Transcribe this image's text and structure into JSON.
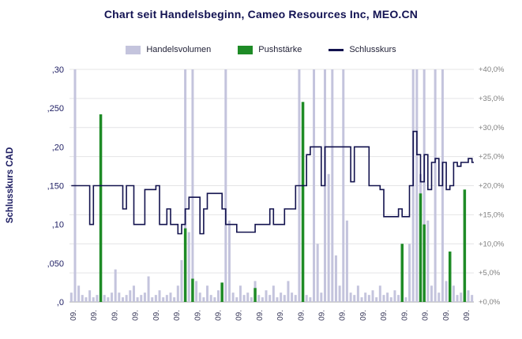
{
  "chart_data": {
    "type": "composite",
    "title": "Chart seit Handelsbeginn, Cameo Resources Inc, MEO.CN",
    "ylabel_left": "Schlusskurs CAD",
    "left_axis": {
      "range": [
        0,
        0.3
      ],
      "ticks": [
        {
          "label": ",30",
          "value": 0.3
        },
        {
          "label": ",250",
          "value": 0.25
        },
        {
          "label": ",20",
          "value": 0.2
        },
        {
          "label": ",150",
          "value": 0.15
        },
        {
          "label": ",10",
          "value": 0.1
        },
        {
          "label": ",050",
          "value": 0.05
        },
        {
          "label": ",0",
          "value": 0.0
        }
      ]
    },
    "right_axis": {
      "range": [
        0,
        40
      ],
      "step": 5,
      "ticks": [
        "+40,0%",
        "+35,0%",
        "+30,0%",
        "+25,0%",
        "+20,0%",
        "+15,0%",
        "+10,0%",
        "+5,0%",
        "+0,0%"
      ]
    },
    "x_tick_labels": [
      "09.",
      "09.",
      "09.",
      "09.",
      "09.",
      "09.",
      "09.",
      "09.",
      "09.",
      "09.",
      "09.",
      "09.",
      "09.",
      "09.",
      "09.",
      "09.",
      "09.",
      "09.",
      "09.",
      "09."
    ],
    "grid": true,
    "legend_position": "top",
    "colors": {
      "title": "#121252",
      "volume": "#c4c4dd",
      "push": "#1e8b26",
      "close": "#12124e",
      "left_axis_text": "#1c1c62",
      "right_axis_text": "#7f7f7f",
      "x_axis_text": "#3c3c5c",
      "grid": "#e4e4e6",
      "baseline": "#a6a6a6"
    },
    "series": [
      {
        "name": "Handelsvolumen",
        "type": "bar",
        "unit": "percent_of_plot_height",
        "color": "#c4c4dd",
        "values": [
          4,
          100,
          7,
          3,
          2,
          5,
          2,
          3,
          9,
          3,
          2,
          4,
          14,
          4,
          2,
          3,
          5,
          7,
          2,
          3,
          4,
          11,
          2,
          3,
          5,
          2,
          3,
          4,
          2,
          7,
          18,
          100,
          30,
          100,
          9,
          4,
          2,
          7,
          3,
          2,
          5,
          3,
          100,
          35,
          4,
          2,
          7,
          3,
          4,
          2,
          9,
          3,
          2,
          5,
          3,
          7,
          2,
          4,
          3,
          9,
          4,
          3,
          100,
          7,
          3,
          2,
          100,
          25,
          4,
          100,
          55,
          100,
          20,
          7,
          100,
          35,
          4,
          3,
          7,
          2,
          4,
          3,
          5,
          2,
          7,
          3,
          4,
          2,
          5,
          3,
          7,
          2,
          25,
          100,
          100,
          55,
          100,
          35,
          7,
          100,
          4,
          100,
          9,
          4,
          7,
          3,
          4,
          2,
          5,
          3
        ]
      },
      {
        "name": "Pushstärke",
        "type": "bar",
        "unit": "CAD",
        "color": "#1e8b26",
        "values": [
          0,
          0,
          0,
          0,
          0,
          0,
          0,
          0,
          0.242,
          0,
          0,
          0,
          0,
          0,
          0,
          0,
          0,
          0,
          0,
          0,
          0,
          0,
          0,
          0,
          0,
          0,
          0,
          0,
          0,
          0,
          0,
          0.095,
          0,
          0.03,
          0,
          0,
          0,
          0,
          0,
          0,
          0,
          0.025,
          0,
          0,
          0,
          0,
          0,
          0,
          0,
          0,
          0.018,
          0,
          0,
          0,
          0,
          0,
          0,
          0,
          0,
          0,
          0,
          0,
          0,
          0.258,
          0,
          0,
          0,
          0,
          0,
          0,
          0,
          0,
          0,
          0,
          0,
          0,
          0,
          0,
          0,
          0,
          0,
          0,
          0,
          0,
          0,
          0,
          0,
          0,
          0,
          0,
          0.075,
          0,
          0,
          0,
          0,
          0.14,
          0.1,
          0,
          0,
          0,
          0,
          0,
          0,
          0.065,
          0,
          0,
          0,
          0.145,
          0,
          0
        ]
      },
      {
        "name": "Schlusskurs",
        "type": "step-line",
        "unit": "CAD",
        "color": "#12124e",
        "values": [
          0.15,
          0.15,
          0.15,
          0.15,
          0.15,
          0.1,
          0.15,
          0.15,
          0.15,
          0.15,
          0.15,
          0.15,
          0.15,
          0.15,
          0.12,
          0.15,
          0.15,
          0.1,
          0.1,
          0.1,
          0.145,
          0.145,
          0.145,
          0.15,
          0.1,
          0.1,
          0.12,
          0.1,
          0.1,
          0.088,
          0.1,
          0.12,
          0.135,
          0.135,
          0.135,
          0.088,
          0.12,
          0.14,
          0.14,
          0.14,
          0.14,
          0.12,
          0.1,
          0.1,
          0.1,
          0.09,
          0.09,
          0.09,
          0.09,
          0.09,
          0.1,
          0.1,
          0.1,
          0.1,
          0.12,
          0.1,
          0.1,
          0.1,
          0.12,
          0.12,
          0.12,
          0.15,
          0.15,
          0.15,
          0.19,
          0.2,
          0.2,
          0.2,
          0.15,
          0.2,
          0.2,
          0.2,
          0.2,
          0.2,
          0.2,
          0.2,
          0.155,
          0.2,
          0.2,
          0.2,
          0.2,
          0.15,
          0.15,
          0.15,
          0.145,
          0.11,
          0.11,
          0.11,
          0.11,
          0.12,
          0.11,
          0.11,
          0.15,
          0.22,
          0.19,
          0.155,
          0.19,
          0.145,
          0.18,
          0.185,
          0.15,
          0.18,
          0.145,
          0.15,
          0.18,
          0.175,
          0.18,
          0.18,
          0.185,
          0.18
        ]
      }
    ]
  }
}
